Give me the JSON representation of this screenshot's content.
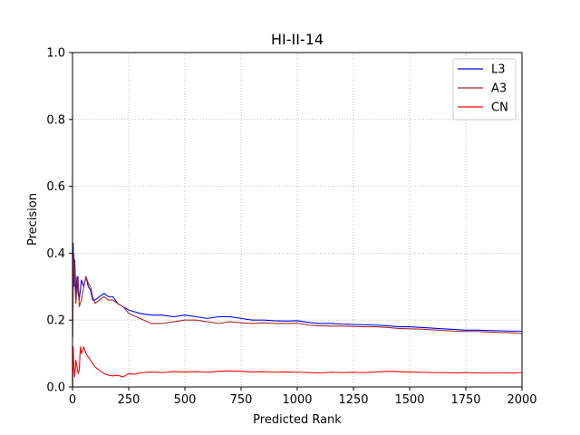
{
  "chart_data": {
    "type": "line",
    "title": "HI-II-14",
    "xlabel": "Predicted Rank",
    "ylabel": "Precision",
    "xlim": [
      0,
      2000
    ],
    "ylim": [
      0.0,
      1.0
    ],
    "xticks": [
      0,
      250,
      500,
      750,
      1000,
      1250,
      1500,
      1750,
      2000
    ],
    "xtick_labels": [
      "0",
      "250",
      "500",
      "750",
      "1000",
      "1250",
      "1500",
      "1750",
      "2000"
    ],
    "yticks": [
      0.0,
      0.2,
      0.4,
      0.6,
      0.8,
      1.0
    ],
    "ytick_labels": [
      "0.0",
      "0.2",
      "0.4",
      "0.6",
      "0.8",
      "1.0"
    ],
    "grid": true,
    "legend_position": "top-right",
    "series": [
      {
        "name": "L3",
        "color": "#0000ff",
        "x": [
          1,
          3,
          6,
          10,
          15,
          20,
          25,
          30,
          40,
          50,
          60,
          70,
          80,
          90,
          100,
          120,
          140,
          160,
          180,
          200,
          225,
          250,
          300,
          350,
          400,
          450,
          500,
          550,
          600,
          650,
          700,
          750,
          800,
          850,
          900,
          950,
          1000,
          1050,
          1100,
          1150,
          1200,
          1250,
          1300,
          1350,
          1400,
          1450,
          1500,
          1550,
          1600,
          1650,
          1700,
          1750,
          1800,
          1850,
          1900,
          1950,
          2000
        ],
        "y": [
          0.2,
          0.43,
          0.3,
          0.38,
          0.27,
          0.33,
          0.28,
          0.26,
          0.32,
          0.3,
          0.33,
          0.3,
          0.29,
          0.26,
          0.26,
          0.27,
          0.28,
          0.27,
          0.27,
          0.25,
          0.24,
          0.23,
          0.22,
          0.215,
          0.215,
          0.21,
          0.215,
          0.21,
          0.205,
          0.21,
          0.21,
          0.205,
          0.2,
          0.2,
          0.198,
          0.197,
          0.198,
          0.193,
          0.19,
          0.19,
          0.188,
          0.187,
          0.186,
          0.185,
          0.183,
          0.18,
          0.18,
          0.178,
          0.176,
          0.174,
          0.172,
          0.17,
          0.17,
          0.169,
          0.168,
          0.167,
          0.167
        ]
      },
      {
        "name": "A3",
        "color": "#a52a2a",
        "x": [
          1,
          3,
          6,
          10,
          15,
          20,
          25,
          30,
          40,
          50,
          60,
          70,
          80,
          90,
          100,
          120,
          140,
          160,
          180,
          200,
          225,
          250,
          300,
          350,
          400,
          450,
          500,
          550,
          600,
          650,
          700,
          750,
          800,
          850,
          900,
          950,
          1000,
          1050,
          1100,
          1150,
          1200,
          1250,
          1300,
          1350,
          1400,
          1450,
          1500,
          1550,
          1600,
          1650,
          1700,
          1750,
          1800,
          1850,
          1900,
          1950,
          2000
        ],
        "y": [
          0.15,
          0.3,
          0.4,
          0.32,
          0.25,
          0.3,
          0.33,
          0.24,
          0.26,
          0.3,
          0.33,
          0.31,
          0.3,
          0.27,
          0.25,
          0.26,
          0.27,
          0.26,
          0.26,
          0.25,
          0.24,
          0.22,
          0.205,
          0.19,
          0.19,
          0.195,
          0.2,
          0.2,
          0.195,
          0.19,
          0.195,
          0.192,
          0.19,
          0.192,
          0.19,
          0.19,
          0.191,
          0.185,
          0.183,
          0.182,
          0.182,
          0.181,
          0.18,
          0.18,
          0.178,
          0.175,
          0.174,
          0.173,
          0.171,
          0.169,
          0.167,
          0.166,
          0.166,
          0.164,
          0.163,
          0.162,
          0.16
        ]
      },
      {
        "name": "CN",
        "color": "#ff0000",
        "x": [
          1,
          3,
          6,
          10,
          15,
          20,
          25,
          30,
          35,
          40,
          50,
          60,
          70,
          80,
          90,
          100,
          120,
          140,
          160,
          180,
          200,
          225,
          250,
          275,
          300,
          350,
          400,
          450,
          500,
          550,
          600,
          650,
          700,
          750,
          800,
          850,
          900,
          950,
          1000,
          1050,
          1100,
          1150,
          1200,
          1250,
          1300,
          1350,
          1400,
          1450,
          1500,
          1550,
          1600,
          1650,
          1700,
          1750,
          1800,
          1850,
          1900,
          1950,
          2000
        ],
        "y": [
          0.0,
          0.12,
          0.06,
          0.03,
          0.08,
          0.06,
          0.04,
          0.05,
          0.12,
          0.1,
          0.12,
          0.1,
          0.09,
          0.08,
          0.07,
          0.06,
          0.05,
          0.04,
          0.035,
          0.033,
          0.035,
          0.03,
          0.04,
          0.038,
          0.042,
          0.045,
          0.043,
          0.046,
          0.045,
          0.046,
          0.044,
          0.047,
          0.048,
          0.047,
          0.045,
          0.046,
          0.044,
          0.045,
          0.044,
          0.043,
          0.042,
          0.044,
          0.043,
          0.044,
          0.043,
          0.045,
          0.047,
          0.046,
          0.045,
          0.044,
          0.043,
          0.043,
          0.042,
          0.043,
          0.042,
          0.042,
          0.042,
          0.042,
          0.043
        ]
      }
    ]
  }
}
